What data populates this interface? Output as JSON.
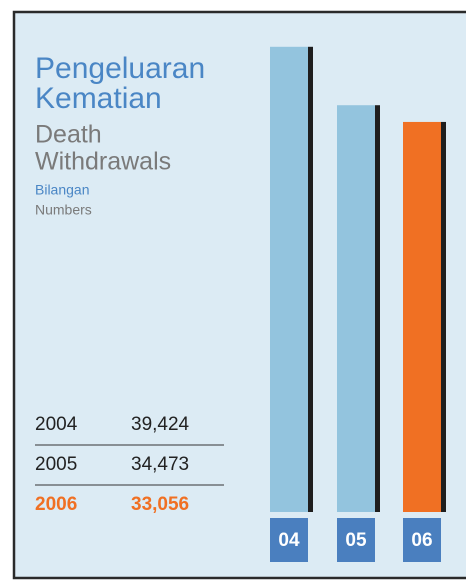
{
  "chart_data": {
    "type": "bar",
    "title": [
      "Pengeluaran",
      "Kematian"
    ],
    "subtitle": [
      "Death",
      "Withdrawals"
    ],
    "unit_label": "Bilangan",
    "unit_label_en": "Numbers",
    "categories": [
      "04",
      "05",
      "06"
    ],
    "years": [
      "2004",
      "2005",
      "2006"
    ],
    "values": [
      39424,
      34473,
      33056
    ],
    "value_labels": [
      "39,424",
      "34,473",
      "33,056"
    ],
    "colors": [
      "#93c4de",
      "#93c4de",
      "#f07023"
    ],
    "highlight": 2,
    "ylim": [
      0,
      40000
    ]
  }
}
